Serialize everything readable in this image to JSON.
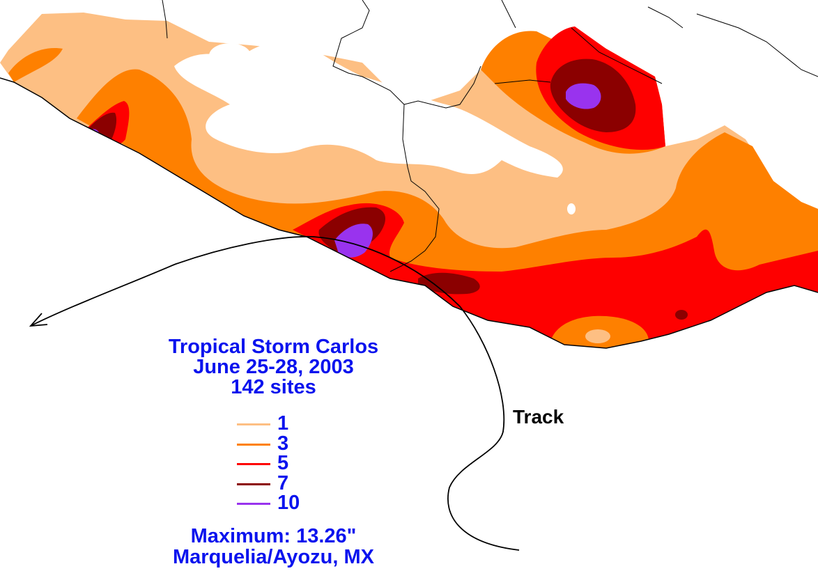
{
  "map": {
    "title": "Tropical Storm Carlos",
    "dates": "June 25-28, 2003",
    "sites": "142 sites",
    "track_label": "Track",
    "maximum": "Maximum:  13.26\"",
    "maximum_location": "Marquelia/Ayozu, MX"
  },
  "legend": {
    "items": [
      {
        "label": "1",
        "color": "#fdbf83"
      },
      {
        "label": "3",
        "color": "#fe8000"
      },
      {
        "label": "5",
        "color": "#fe0000"
      },
      {
        "label": "7",
        "color": "#8b0000"
      },
      {
        "label": "10",
        "color": "#9933ee"
      }
    ]
  },
  "colors": {
    "text": "#0a13ee",
    "track": "#000000",
    "land_none": "#ffffff",
    "border": "#000000"
  }
}
